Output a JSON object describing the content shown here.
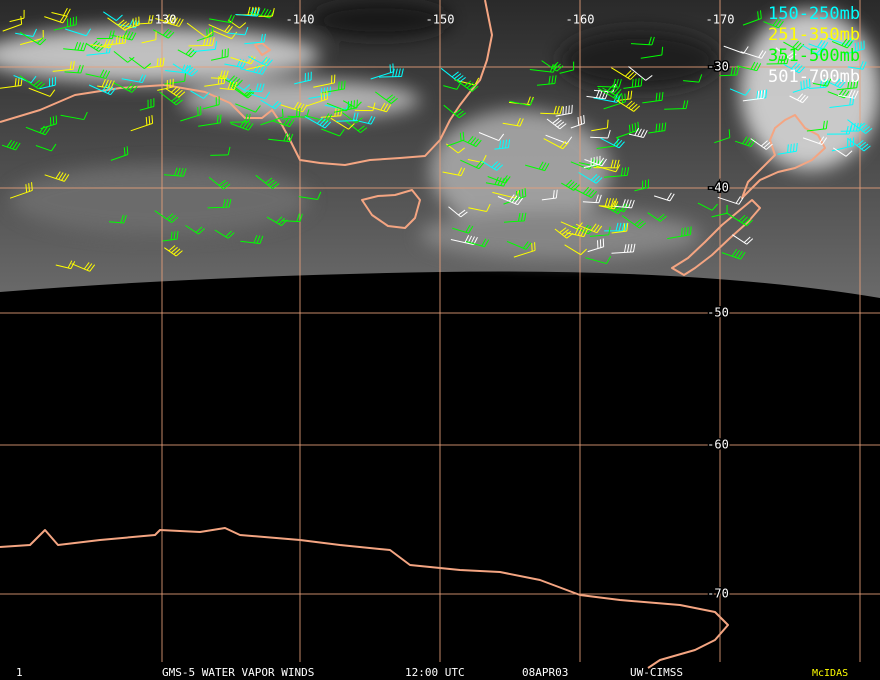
{
  "map": {
    "longitude_labels": [
      "-130",
      "-140",
      "-150",
      "-160",
      "-170"
    ],
    "latitude_labels": [
      "-30",
      "-40",
      "-50",
      "-60",
      "-70"
    ],
    "legend": [
      {
        "label": "150-250mb",
        "color": "#00ffff"
      },
      {
        "label": "251-350mb",
        "color": "#ffff00"
      },
      {
        "label": "351-500mb",
        "color": "#00ff00"
      },
      {
        "label": "501-700mb",
        "color": "#ffffff"
      }
    ],
    "footer": {
      "frame": "1",
      "product": "GMS-5 WATER VAPOR WINDS",
      "time": "12:00 UTC",
      "date": "08APR03",
      "source": "UW-CIMSS",
      "software": "McIDAS"
    }
  }
}
